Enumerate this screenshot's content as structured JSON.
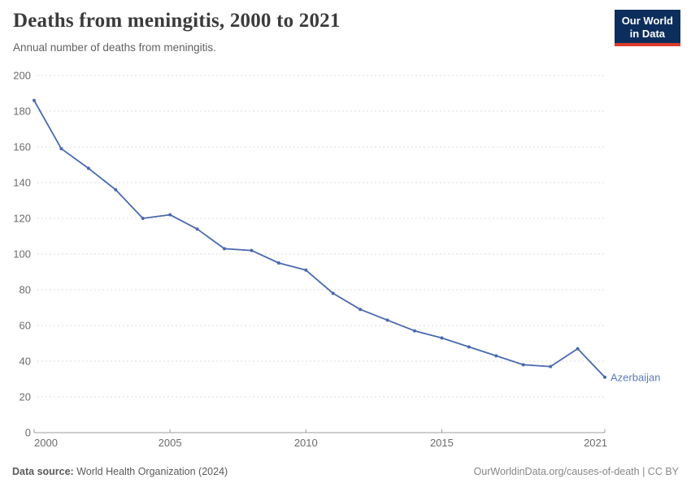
{
  "header": {
    "title": "Deaths from meningitis, 2000 to 2021",
    "subtitle": "Annual number of deaths from meningitis."
  },
  "logo": {
    "line1": "Our World",
    "line2": "in Data",
    "bg_color": "#0d2e5c",
    "accent_color": "#dc3a2c"
  },
  "footer": {
    "datasource_label": "Data source:",
    "datasource_value": "World Health Organization (2024)",
    "credit": "OurWorldinData.org/causes-of-death | CC BY"
  },
  "colors": {
    "line": "#4a69ad",
    "end_label": "#5b7abd",
    "gridline": "#dcdcdc",
    "axis": "#9e9e9e",
    "tick_label": "#6b6b6b",
    "title_text": "#3b3b3b"
  },
  "chart_data": {
    "type": "line",
    "title": "Deaths from meningitis, 2000 to 2021",
    "subtitle": "Annual number of deaths from meningitis.",
    "xlabel": "",
    "ylabel": "Annual number of deaths",
    "grid": "horizontal-dashed",
    "legend_position": "end-of-line-label",
    "ylim": [
      0,
      200
    ],
    "ytick_step": 20,
    "xticks": [
      2000,
      2005,
      2010,
      2015,
      2021
    ],
    "x": [
      2000,
      2001,
      2002,
      2003,
      2004,
      2005,
      2006,
      2007,
      2008,
      2009,
      2010,
      2011,
      2012,
      2013,
      2014,
      2015,
      2016,
      2017,
      2018,
      2019,
      2020,
      2021
    ],
    "series": [
      {
        "name": "Azerbaijan",
        "values": [
          186,
          159,
          148,
          136,
          120,
          122,
          114,
          103,
          102,
          95,
          91,
          78,
          69,
          63,
          57,
          53,
          48,
          43,
          38,
          37,
          47,
          31
        ]
      }
    ]
  }
}
